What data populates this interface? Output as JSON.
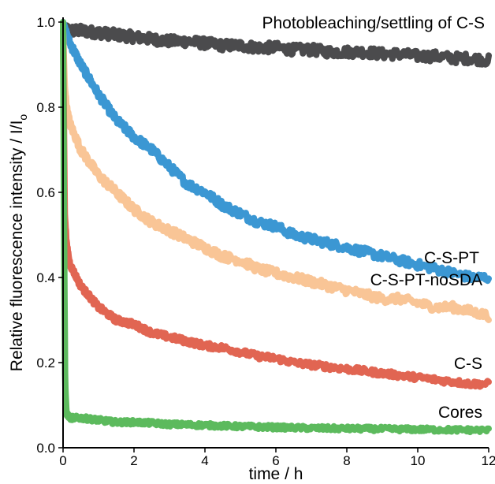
{
  "chart_data": {
    "type": "line",
    "title": "",
    "xlabel": "time / h",
    "ylabel": "Relative fluorescence intensity / I/I",
    "ylabel_subscript": "o",
    "xlim": [
      0,
      12
    ],
    "ylim": [
      0,
      1.0
    ],
    "x_ticks": [
      0,
      2,
      4,
      6,
      8,
      10,
      12
    ],
    "x_tick_labels": [
      "0",
      "2",
      "4",
      "6",
      "8",
      "10",
      "12"
    ],
    "y_ticks": [
      0.0,
      0.2,
      0.4,
      0.6,
      0.8,
      1.0
    ],
    "y_tick_labels": [
      "0.0",
      "0.2",
      "0.4",
      "0.6",
      "0.8",
      "1.0"
    ],
    "grid": false,
    "legend": "inline labels",
    "series": [
      {
        "name": "Photobleaching/settling of C-S",
        "color": "#4b4b4d",
        "x": [
          0,
          0.5,
          1,
          1.5,
          2,
          2.5,
          3,
          3.5,
          4,
          4.5,
          5,
          5.5,
          6,
          6.5,
          7,
          7.5,
          8,
          8.5,
          9,
          9.5,
          10,
          10.5,
          11,
          11.5,
          12
        ],
        "y": [
          0.98,
          0.98,
          0.975,
          0.97,
          0.965,
          0.96,
          0.955,
          0.955,
          0.95,
          0.945,
          0.945,
          0.94,
          0.94,
          0.935,
          0.935,
          0.93,
          0.93,
          0.93,
          0.925,
          0.925,
          0.92,
          0.92,
          0.915,
          0.915,
          0.91
        ]
      },
      {
        "name": "C-S-PT",
        "color": "#3b97d3",
        "x": [
          0,
          0.05,
          0.1,
          0.2,
          0.5,
          1,
          1.5,
          2,
          2.5,
          3,
          3.5,
          4,
          4.5,
          5,
          5.5,
          6,
          6.5,
          7,
          7.5,
          8,
          8.5,
          9,
          9.5,
          10,
          10.5,
          11,
          11.5,
          12
        ],
        "y": [
          1.0,
          0.99,
          0.97,
          0.95,
          0.9,
          0.83,
          0.77,
          0.73,
          0.7,
          0.66,
          0.62,
          0.6,
          0.57,
          0.55,
          0.53,
          0.52,
          0.5,
          0.49,
          0.48,
          0.47,
          0.46,
          0.45,
          0.44,
          0.43,
          0.42,
          0.41,
          0.4,
          0.4
        ]
      },
      {
        "name": "C-S-PT-noSDA",
        "color": "#f9c596",
        "x": [
          0,
          0.05,
          0.1,
          0.2,
          0.5,
          1,
          1.5,
          2,
          2.5,
          3,
          3.5,
          4,
          4.5,
          5,
          5.5,
          6,
          6.5,
          7,
          7.5,
          8,
          8.5,
          9,
          9.5,
          10,
          10.5,
          11,
          11.5,
          12
        ],
        "y": [
          0.98,
          0.85,
          0.8,
          0.76,
          0.7,
          0.64,
          0.6,
          0.56,
          0.53,
          0.51,
          0.49,
          0.47,
          0.45,
          0.44,
          0.42,
          0.41,
          0.4,
          0.39,
          0.38,
          0.37,
          0.36,
          0.35,
          0.35,
          0.34,
          0.33,
          0.33,
          0.32,
          0.31
        ]
      },
      {
        "name": "C-S",
        "color": "#e16552",
        "x": [
          0,
          0.05,
          0.1,
          0.2,
          0.5,
          1,
          1.5,
          2,
          2.5,
          3,
          3.5,
          4,
          4.5,
          5,
          5.5,
          6,
          6.5,
          7,
          7.5,
          8,
          8.5,
          9,
          9.5,
          10,
          10.5,
          11,
          11.5,
          12
        ],
        "y": [
          0.98,
          0.55,
          0.48,
          0.43,
          0.38,
          0.33,
          0.3,
          0.29,
          0.27,
          0.26,
          0.25,
          0.24,
          0.235,
          0.225,
          0.215,
          0.21,
          0.2,
          0.195,
          0.19,
          0.185,
          0.18,
          0.175,
          0.17,
          0.165,
          0.16,
          0.155,
          0.15,
          0.15
        ]
      },
      {
        "name": "Cores",
        "color": "#5cba5d",
        "x": [
          0,
          0.03,
          0.06,
          0.1,
          0.2,
          0.5,
          1,
          1.5,
          2,
          2.5,
          3,
          4,
          5,
          6,
          7,
          8,
          9,
          10,
          11,
          12
        ],
        "y": [
          1.0,
          0.5,
          0.15,
          0.08,
          0.07,
          0.07,
          0.065,
          0.06,
          0.06,
          0.058,
          0.055,
          0.053,
          0.05,
          0.048,
          0.046,
          0.045,
          0.044,
          0.043,
          0.042,
          0.041
        ]
      }
    ]
  }
}
